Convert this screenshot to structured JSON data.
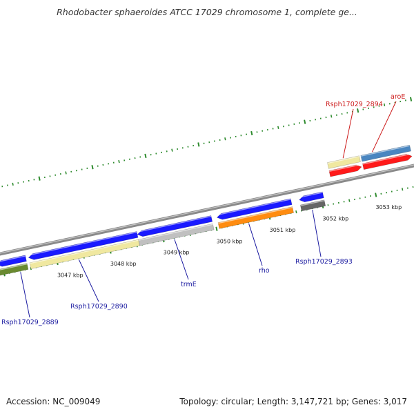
{
  "title": "Rhodobacter sphaeroides ATCC 17029 chromosome 1, complete ge...",
  "footer": {
    "accession": "Accession: NC_009049",
    "summary": "Topology: circular; Length: 3,147,721 bp; Genes: 3,017"
  },
  "colors": {
    "gene_blue": "#1a1aff",
    "gene_red": "#ff1a1a",
    "label_blue": "#1a1aa0",
    "label_red": "#cc1a1a",
    "tick_green": "#2e8b2e",
    "backbone": "#888888"
  },
  "scale": {
    "start_kbp": 3046.0,
    "end_kbp": 3053.8,
    "tick_labels": [
      {
        "kbp": 3047,
        "text": "3047 kbp"
      },
      {
        "kbp": 3048,
        "text": "3048 kbp"
      },
      {
        "kbp": 3049,
        "text": "3049 kbp"
      },
      {
        "kbp": 3050,
        "text": "3050 kbp"
      },
      {
        "kbp": 3051,
        "text": "3051 kbp"
      },
      {
        "kbp": 3052,
        "text": "3052 kbp"
      },
      {
        "kbp": 3053,
        "text": "3053 kbp"
      }
    ]
  },
  "features": {
    "outer_forward": [
      {
        "name": "Rsph17029_2894",
        "start": 3052.25,
        "end": 3052.85,
        "color": "#f0e8a0",
        "shape": "box"
      },
      {
        "name": "aroE",
        "start": 3052.88,
        "end": 3053.8,
        "color": "#4a86c0",
        "shape": "box"
      }
    ],
    "inner_forward": [
      {
        "start": 3052.25,
        "end": 3052.85,
        "color": "#ff1a1a",
        "shape": "arrow-right"
      },
      {
        "start": 3052.88,
        "end": 3053.8,
        "color": "#ff1a1a",
        "shape": "arrow-right"
      }
    ],
    "inner_reverse": [
      {
        "start": 3045.9,
        "end": 3046.45,
        "color": "#1a1aff",
        "shape": "arrow-left"
      },
      {
        "start": 3046.5,
        "end": 3048.55,
        "color": "#1a1aff",
        "shape": "arrow-left"
      },
      {
        "start": 3048.55,
        "end": 3049.95,
        "color": "#1a1aff",
        "shape": "arrow-left"
      },
      {
        "start": 3050.05,
        "end": 3051.45,
        "color": "#1a1aff",
        "shape": "arrow-left"
      },
      {
        "start": 3051.6,
        "end": 3052.05,
        "color": "#1a1aff",
        "shape": "arrow-left"
      }
    ],
    "outer_reverse": [
      {
        "name": "Rsph17029_2889",
        "start": 3045.9,
        "end": 3046.45,
        "color": "#6a8a30",
        "shape": "box"
      },
      {
        "name": "Rsph17029_2890",
        "start": 3046.5,
        "end": 3048.55,
        "color": "#f0e8a0",
        "shape": "box"
      },
      {
        "name": "trmE",
        "start": 3048.55,
        "end": 3049.95,
        "color": "#c0c0c0",
        "shape": "box"
      },
      {
        "name": "rho",
        "start": 3050.05,
        "end": 3051.45,
        "color": "#ff8c10",
        "shape": "box"
      },
      {
        "name": "Rsph17029_2893",
        "start": 3051.6,
        "end": 3052.05,
        "color": "#666666",
        "shape": "box"
      }
    ]
  },
  "gene_labels": [
    {
      "text": "Rsph17029_2894",
      "color": "#cc1a1a",
      "side": "top"
    },
    {
      "text": "aroE",
      "color": "#cc1a1a",
      "side": "top"
    },
    {
      "text": "Rsph17029_2889",
      "color": "#1a1aa0",
      "side": "bottom"
    },
    {
      "text": "Rsph17029_2890",
      "color": "#1a1aa0",
      "side": "bottom"
    },
    {
      "text": "trmE",
      "color": "#1a1aa0",
      "side": "bottom"
    },
    {
      "text": "rho",
      "color": "#1a1aa0",
      "side": "bottom"
    },
    {
      "text": "Rsph17029_2893",
      "color": "#1a1aa0",
      "side": "bottom"
    }
  ]
}
